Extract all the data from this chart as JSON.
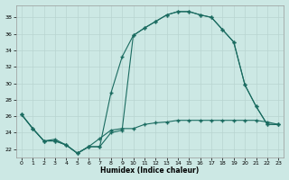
{
  "xlabel": "Humidex (Indice chaleur)",
  "bg_color": "#cce8e4",
  "grid_color": "#b8d4d0",
  "line_color": "#1a6b60",
  "xlim": [
    -0.5,
    23.5
  ],
  "ylim": [
    21.0,
    39.5
  ],
  "yticks": [
    22,
    24,
    26,
    28,
    30,
    32,
    34,
    36,
    38
  ],
  "xticks": [
    0,
    1,
    2,
    3,
    4,
    5,
    6,
    7,
    8,
    9,
    10,
    11,
    12,
    13,
    14,
    15,
    16,
    17,
    18,
    19,
    20,
    21,
    22,
    23
  ],
  "curve1_x": [
    0,
    1,
    2,
    3,
    4,
    5,
    6,
    7,
    8,
    9,
    10,
    11,
    12,
    13,
    14,
    15,
    16,
    17,
    18,
    19,
    20,
    21,
    22,
    23
  ],
  "curve1_y": [
    26.2,
    24.5,
    23.0,
    23.0,
    22.5,
    21.5,
    22.3,
    22.3,
    24.0,
    24.3,
    35.8,
    36.7,
    37.5,
    38.3,
    38.7,
    38.7,
    38.3,
    38.0,
    36.5,
    35.0,
    29.8,
    27.2,
    25.0,
    25.0
  ],
  "curve2_x": [
    0,
    1,
    2,
    3,
    4,
    5,
    6,
    7,
    8,
    9,
    10,
    11,
    12,
    13,
    14,
    15,
    16,
    17,
    18,
    19,
    20,
    21,
    22,
    23
  ],
  "curve2_y": [
    26.2,
    24.5,
    23.0,
    23.0,
    22.5,
    21.5,
    22.3,
    22.3,
    28.8,
    33.2,
    35.8,
    36.7,
    37.5,
    38.3,
    38.7,
    38.7,
    38.3,
    38.0,
    36.5,
    35.0,
    29.8,
    27.2,
    25.0,
    25.0
  ],
  "curve3_x": [
    0,
    1,
    2,
    3,
    4,
    5,
    6,
    7,
    8,
    9,
    10,
    11,
    12,
    13,
    14,
    15,
    16,
    17,
    18,
    19,
    20,
    21,
    22,
    23
  ],
  "curve3_y": [
    26.2,
    24.5,
    23.0,
    23.2,
    22.5,
    21.5,
    22.3,
    23.3,
    24.3,
    24.5,
    24.5,
    25.0,
    25.2,
    25.3,
    25.5,
    25.5,
    25.5,
    25.5,
    25.5,
    25.5,
    25.5,
    25.5,
    25.3,
    25.0
  ]
}
